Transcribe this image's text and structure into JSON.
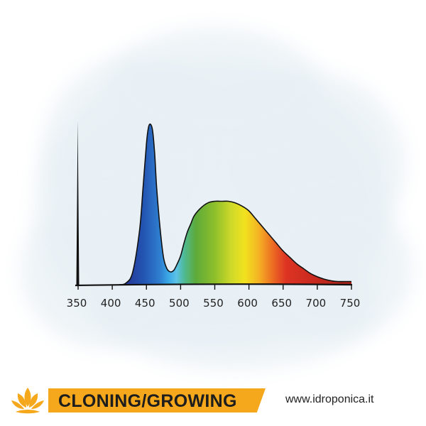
{
  "colors": {
    "brand_orange": "#f5a81c",
    "background_wash": "#e8f0f5",
    "curve_outline": "#111111"
  },
  "icons": {
    "logo": "lotus-icon"
  },
  "footer": {
    "category_label": "CLONING/GROWING",
    "website": "www.idroponica.it"
  },
  "chart_data": {
    "type": "area",
    "xlabel": "",
    "ylabel": "",
    "xlim": [
      350,
      750
    ],
    "ylim": [
      0,
      1
    ],
    "grid": false,
    "legend": "none",
    "x_ticks": [
      350,
      400,
      450,
      500,
      550,
      600,
      650,
      700,
      750
    ],
    "x_tick_labels": [
      "350",
      "400",
      "450",
      "500",
      "550",
      "600",
      "650",
      "700",
      "750"
    ],
    "series": [
      {
        "x": [
          410,
          420,
          430,
          440,
          445,
          450,
          453,
          456,
          459,
          462,
          465,
          470,
          475,
          480,
          485,
          490,
          495,
          500,
          505,
          510,
          515,
          520,
          530,
          540,
          550,
          560,
          570,
          580,
          590,
          600,
          610,
          620,
          630,
          640,
          650,
          660,
          670,
          680,
          690,
          700,
          710,
          720,
          730,
          740,
          750
        ],
        "y": [
          0.0,
          0.01,
          0.08,
          0.34,
          0.6,
          0.88,
          0.98,
          1.0,
          0.96,
          0.82,
          0.6,
          0.35,
          0.17,
          0.1,
          0.08,
          0.09,
          0.13,
          0.18,
          0.26,
          0.33,
          0.38,
          0.43,
          0.48,
          0.51,
          0.52,
          0.52,
          0.52,
          0.51,
          0.49,
          0.46,
          0.41,
          0.36,
          0.31,
          0.26,
          0.21,
          0.17,
          0.13,
          0.1,
          0.07,
          0.05,
          0.035,
          0.025,
          0.02,
          0.02,
          0.02
        ]
      }
    ]
  }
}
